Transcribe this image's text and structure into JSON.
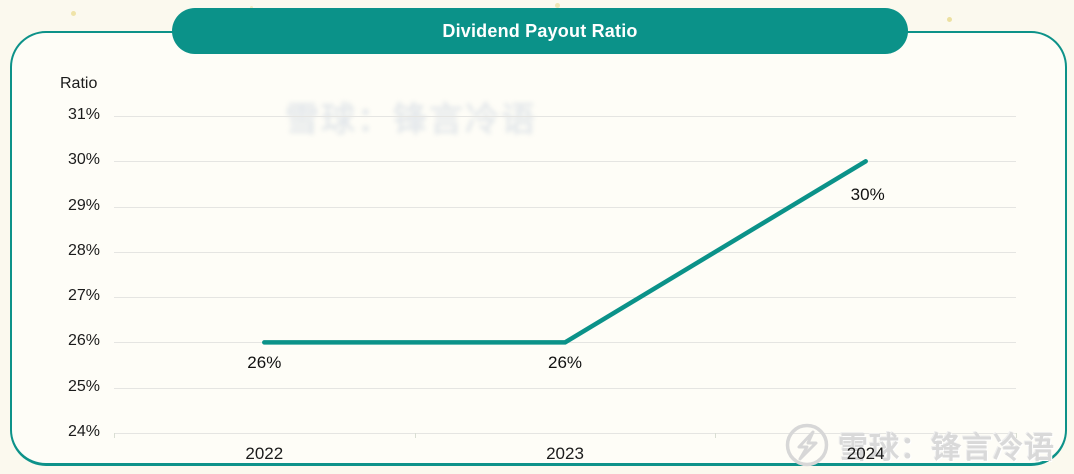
{
  "header": {
    "title": "Dividend Payout Ratio"
  },
  "chart_data": {
    "type": "line",
    "title": "Dividend Payout Ratio",
    "ylabel": "Ratio",
    "xlabel": "",
    "categories": [
      "2022",
      "2023",
      "2024"
    ],
    "series": [
      {
        "name": "Dividend Payout Ratio",
        "values": [
          26,
          26,
          30
        ]
      }
    ],
    "data_labels": [
      "26%",
      "26%",
      "30%"
    ],
    "y_ticks": [
      "31%",
      "30%",
      "29%",
      "28%",
      "27%",
      "26%",
      "25%",
      "24%"
    ],
    "ylim": [
      24,
      31
    ],
    "grid": true,
    "legend": "none",
    "line_color": "#0b9289"
  },
  "watermark": {
    "text": "雪球：锋言冷语",
    "icon": "snowball-logo"
  },
  "colors": {
    "teal": "#0b9289",
    "grid": "#e5e5e2",
    "text": "#1b1b1b",
    "panel_bg": "#fefdf7",
    "page_bg": "#fbf9ee",
    "watermark_gray": "#d9d9d9"
  }
}
